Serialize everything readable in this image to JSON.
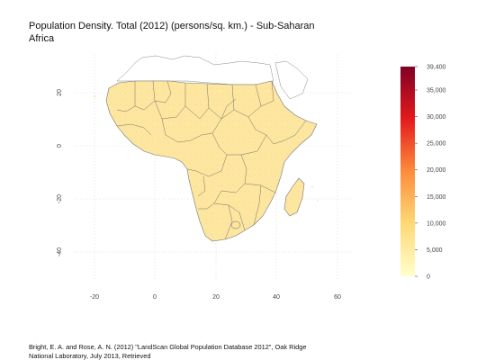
{
  "title": "Population Density. Total (2012) (persons/sq. km.) - Sub-Saharan Africa",
  "colors": {
    "land_fill": "#fde8a4",
    "land_fill_dense": "#fbd98a",
    "non_data_fill": "#ffffff",
    "border": "#555555",
    "grid": "#dddddd",
    "scale_low": "#ffffcc",
    "scale_mid1": "#fed976",
    "scale_mid2": "#fd8d3c",
    "scale_mid3": "#e31a1c",
    "scale_high": "#800026"
  },
  "map": {
    "x_ticks": [
      "-20",
      "0",
      "20",
      "40",
      "60"
    ],
    "y_ticks": [
      "20",
      "0",
      "-20",
      "-40"
    ]
  },
  "legend": {
    "min": 0,
    "max": 39400,
    "labels": [
      "39,400",
      "35,000",
      "30,000",
      "25,000",
      "20,000",
      "15,000",
      "10,000",
      "5,000",
      "0"
    ]
  },
  "credit": "Bright, E. A. and Rose, A. N. (2012) \"LandScan Global Population Database 2012\", Oak Ridge National Laboratory, July 2013, Retrieved"
}
